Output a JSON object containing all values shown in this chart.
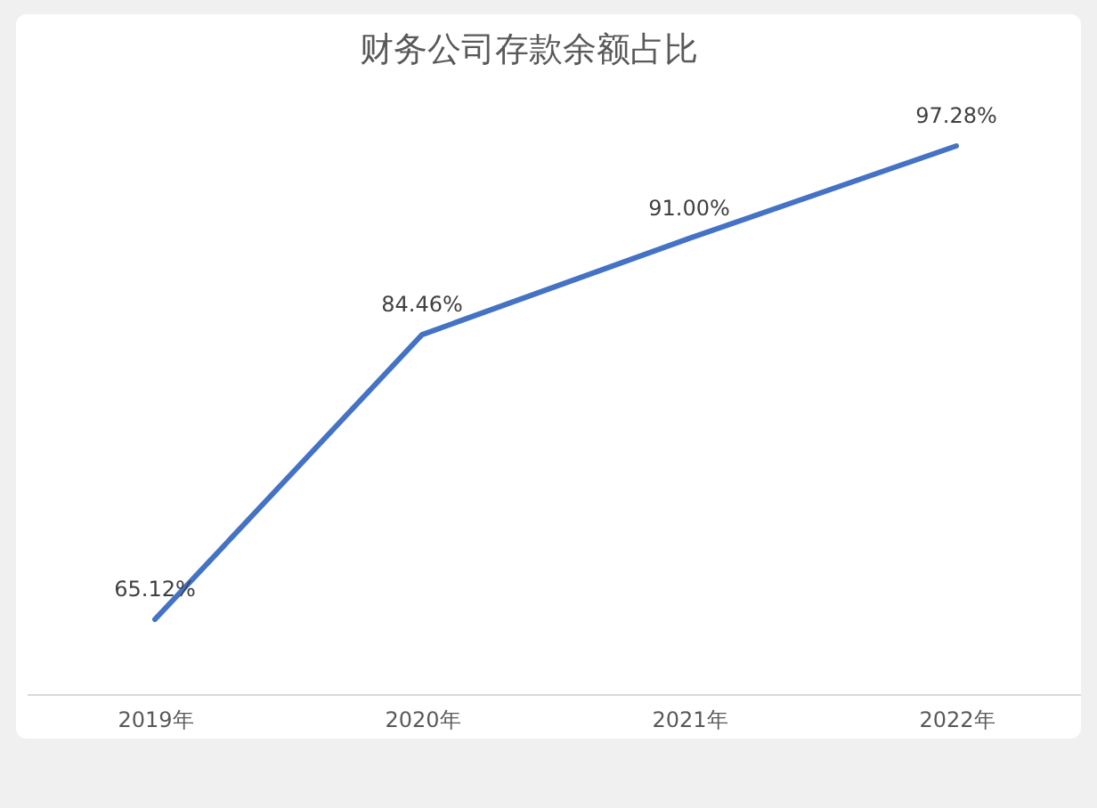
{
  "chart_data": {
    "type": "line",
    "title": "财务公司存款余额占比",
    "categories": [
      "2019年",
      "2020年",
      "2021年",
      "2022年"
    ],
    "values": [
      65.12,
      84.46,
      91.0,
      97.28
    ],
    "value_labels": [
      "65.12%",
      "84.46%",
      "91.00%",
      "97.28%"
    ],
    "color": "#4472c4",
    "tick_labels": "x"
  }
}
